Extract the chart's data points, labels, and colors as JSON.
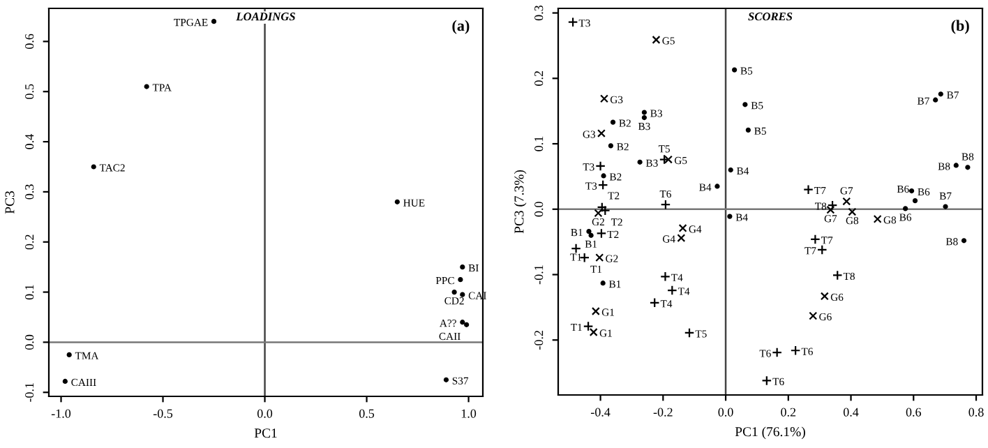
{
  "chart_data": [
    {
      "type": "scatter",
      "title": "LOADINGS",
      "xlabel": "PC1",
      "ylabel": "PC3",
      "annotations": [
        "(a)"
      ],
      "xlim": [
        -1.06,
        1.07
      ],
      "ylim": [
        -0.108,
        0.666
      ],
      "xticks": [
        {
          "value": -1.0,
          "label": "-1.0"
        },
        {
          "value": -0.5,
          "label": "-0.5"
        },
        {
          "value": 0.0,
          "label": "0.0"
        },
        {
          "value": 0.5,
          "label": "0.5"
        },
        {
          "value": 1.0,
          "label": "1.0"
        }
      ],
      "yticks": [
        {
          "value": -0.1,
          "label": "-0.1"
        },
        {
          "value": 0.0,
          "label": "0.0"
        },
        {
          "value": 0.1,
          "label": "0.1"
        },
        {
          "value": 0.2,
          "label": "0.2"
        },
        {
          "value": 0.3,
          "label": "0.3"
        },
        {
          "value": 0.4,
          "label": "0.4"
        },
        {
          "value": 0.5,
          "label": "0.5"
        },
        {
          "value": 0.6,
          "label": "0.6"
        }
      ],
      "ref_lines": [
        {
          "axis": "x",
          "value": 0,
          "color": "#444444"
        },
        {
          "axis": "y",
          "value": 0,
          "color": "#777777"
        }
      ],
      "grid": false,
      "legend": false,
      "series": [
        {
          "color": "#000000",
          "marker": "circle",
          "x": [
            -0.25,
            -0.58,
            -0.84,
            0.65,
            0.97,
            0.96,
            0.93,
            0.97,
            0.97,
            0.99,
            -0.96,
            -0.98,
            0.89
          ],
          "values": [
            0.64,
            0.51,
            0.35,
            0.28,
            0.15,
            0.125,
            0.1,
            0.095,
            0.04,
            0.035,
            -0.025,
            -0.078,
            -0.075
          ],
          "value_labels": [
            "TPGAE",
            "TPA",
            "TAC2",
            "HUE",
            "BI",
            "PPC",
            "CD2",
            "CAI",
            "A??",
            "CAII",
            "TMA",
            "CAIII",
            "S37"
          ]
        }
      ]
    },
    {
      "type": "scatter",
      "title": "SCORES",
      "xlabel": "PC1 (76.1%)",
      "ylabel": "PC3 (7.3%)",
      "annotations": [
        "(b)"
      ],
      "xlim": [
        -0.535,
        0.82
      ],
      "ylim": [
        -0.284,
        0.307
      ],
      "xticks": [
        {
          "value": -0.4,
          "label": "-0.4"
        },
        {
          "value": -0.2,
          "label": "-0.2"
        },
        {
          "value": 0.0,
          "label": "0.0"
        },
        {
          "value": 0.2,
          "label": "0.2"
        },
        {
          "value": 0.4,
          "label": "0.4"
        },
        {
          "value": 0.6,
          "label": "0.6"
        },
        {
          "value": 0.8,
          "label": "0.8"
        }
      ],
      "yticks": [
        {
          "value": -0.2,
          "label": "-0.2"
        },
        {
          "value": -0.1,
          "label": "-0.1"
        },
        {
          "value": 0.0,
          "label": "0.0"
        },
        {
          "value": 0.1,
          "label": "0.1"
        },
        {
          "value": 0.2,
          "label": "0.2"
        },
        {
          "value": 0.3,
          "label": "0.3"
        }
      ],
      "ref_lines": [
        {
          "axis": "x",
          "value": 0,
          "color": "#444444"
        },
        {
          "axis": "y",
          "value": 0,
          "color": "#777777"
        }
      ],
      "grid": false,
      "legend": false,
      "series": [
        {
          "color": "#000000",
          "marker": "circle",
          "x": [
            -0.36,
            -0.26,
            -0.26,
            -0.367,
            -0.274,
            -0.39,
            -0.027,
            0.013,
            -0.437,
            -0.43,
            -0.392,
            0.028,
            0.062,
            0.072,
            0.016,
            0.687,
            0.67,
            0.736,
            0.773,
            0.594,
            0.605,
            0.702,
            0.574,
            0.761
          ],
          "values": [
            0.133,
            0.148,
            0.14,
            0.097,
            0.072,
            0.051,
            0.035,
            -0.011,
            -0.034,
            -0.04,
            -0.113,
            0.213,
            0.16,
            0.121,
            0.06,
            0.176,
            0.167,
            0.067,
            0.064,
            0.028,
            0.013,
            0.004,
            0.001,
            -0.048
          ],
          "value_labels": [
            "B2",
            "B3",
            "B3",
            "B2",
            "B3",
            "B2",
            "B4",
            "B4",
            "B1",
            "B1",
            "B1",
            "B5",
            "B5",
            "B5",
            "B4",
            "B7",
            "B7",
            "B8",
            "B8",
            "B6",
            "B6",
            "B7",
            "B6",
            "B8"
          ]
        },
        {
          "color": "#000000",
          "marker": "cross",
          "x": [
            -0.222,
            -0.388,
            -0.397,
            -0.183,
            -0.407,
            -0.137,
            -0.142,
            -0.403,
            -0.415,
            -0.422,
            0.386,
            0.335,
            0.485,
            0.404,
            0.316,
            0.279
          ],
          "values": [
            0.259,
            0.169,
            0.116,
            0.076,
            -0.006,
            -0.029,
            -0.044,
            -0.074,
            -0.156,
            -0.188,
            0.012,
            -0.001,
            -0.015,
            -0.004,
            -0.133,
            -0.163
          ],
          "value_labels": [
            "G5",
            "G3",
            "G3",
            "G5",
            "G2",
            "G4",
            "G4",
            "G2",
            "G1",
            "G1",
            "G7",
            "G7",
            "G8",
            "G8",
            "G6",
            "G6"
          ]
        },
        {
          "color": "#000000",
          "marker": "plus",
          "x": [
            -0.488,
            -0.196,
            -0.4,
            -0.392,
            -0.192,
            -0.395,
            -0.385,
            -0.397,
            -0.478,
            -0.451,
            -0.193,
            -0.171,
            -0.227,
            -0.439,
            -0.116,
            0.264,
            0.341,
            0.286,
            0.308,
            0.357,
            0.164,
            0.223,
            0.131
          ],
          "values": [
            0.286,
            0.076,
            0.066,
            0.037,
            0.007,
            0.003,
            -0.002,
            -0.037,
            -0.06,
            -0.074,
            -0.103,
            -0.124,
            -0.143,
            -0.179,
            -0.189,
            0.03,
            0.006,
            -0.046,
            -0.062,
            -0.101,
            -0.219,
            -0.216,
            -0.262
          ],
          "value_labels": [
            "T3",
            "T5",
            "T3",
            "T3",
            "T6",
            "T2",
            "T2",
            "T2",
            "T1",
            "T1",
            "T4",
            "T4",
            "T4",
            "T1",
            "T5",
            "T7",
            "T8",
            "T7",
            "T7",
            "T8",
            "T6",
            "T6",
            "T6"
          ]
        }
      ]
    }
  ]
}
